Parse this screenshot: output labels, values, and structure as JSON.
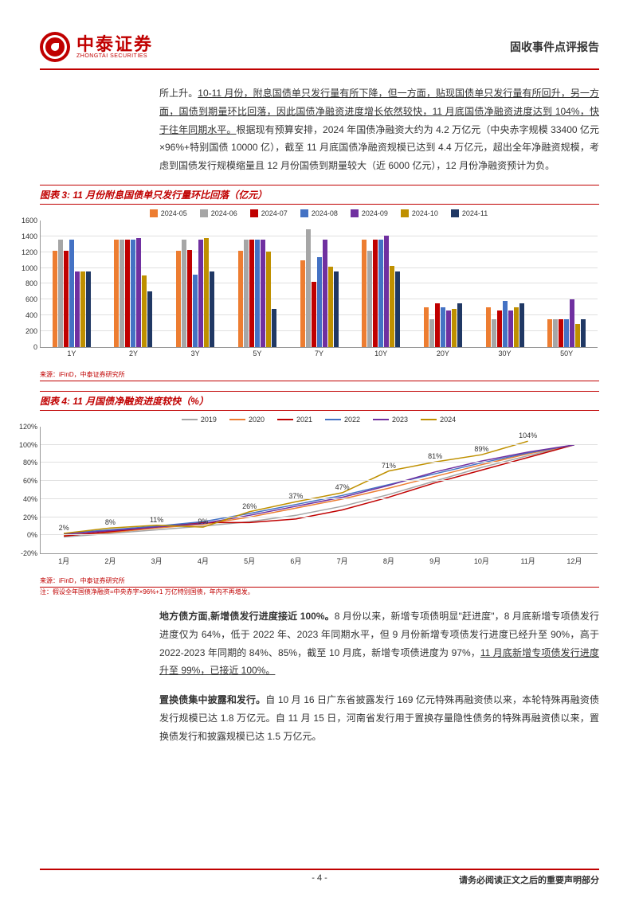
{
  "header": {
    "logo_cn": "中泰证券",
    "logo_en": "ZHONGTAI SECURITIES",
    "report_type": "固收事件点评报告"
  },
  "intro_text": {
    "prefix": "所上升。",
    "underlined1": "10-11 月份，附息国债单只发行量有所下降，但一方面，贴现国债单只发行量有所回升，另一方面，国债到期量环比回落，因此国债净融资进度增长依然较快，11 月底国债净融资进度达到 104%，快于往年同期水平。",
    "rest": "根据现有预算安排，2024 年国债净融资大约为 4.2 万亿元（中央赤字规模 33400 亿元×96%+特别国债 10000 亿），截至 11 月底国债净融资规模已达到 4.4 万亿元，超出全年净融资规模，考虑到国债发行规模缩量且 12 月份国债到期量较大（近 6000 亿元），12 月份净融资预计为负。"
  },
  "chart3": {
    "title": "图表 3:  11 月份附息国债单只发行量环比回落（亿元）",
    "type": "bar",
    "source": "来源：iFinD，中泰证券研究所",
    "categories": [
      "1Y",
      "2Y",
      "3Y",
      "5Y",
      "7Y",
      "10Y",
      "20Y",
      "30Y",
      "50Y"
    ],
    "series_labels": [
      "2024-05",
      "2024-06",
      "2024-07",
      "2024-08",
      "2024-09",
      "2024-10",
      "2024-11"
    ],
    "series_colors": [
      "#ed7d31",
      "#a6a6a6",
      "#c00000",
      "#4472c4",
      "#7030a0",
      "#bf9000",
      "#203864"
    ],
    "ymax": 1600,
    "ystep": 200,
    "values": [
      [
        1210,
        1350,
        1210,
        1350,
        950,
        950,
        950
      ],
      [
        1350,
        1350,
        1350,
        1350,
        1370,
        900,
        700
      ],
      [
        1210,
        1350,
        1220,
        910,
        1350,
        1370,
        950
      ],
      [
        1210,
        1350,
        1350,
        1350,
        1350,
        1200,
        480
      ],
      [
        1090,
        1480,
        820,
        1130,
        1350,
        1010,
        950
      ],
      [
        1350,
        1210,
        1350,
        1350,
        1400,
        1020,
        950
      ],
      [
        500,
        350,
        550,
        500,
        460,
        480,
        550
      ],
      [
        500,
        350,
        460,
        580,
        460,
        500,
        550
      ],
      [
        350,
        350,
        350,
        350,
        600,
        290,
        350
      ]
    ]
  },
  "chart4": {
    "title": "图表 4:  11 月国债净融资进度较快（%）",
    "type": "line",
    "source": "来源：iFinD，中泰证券研究所",
    "note": "注：假设全年国债净融资=中央赤字×96%+1 万亿特别国债，年内不再增发。",
    "categories": [
      "1月",
      "2月",
      "3月",
      "4月",
      "5月",
      "6月",
      "7月",
      "8月",
      "9月",
      "10月",
      "11月",
      "12月"
    ],
    "series_labels": [
      "2019",
      "2020",
      "2021",
      "2022",
      "2023",
      "2024"
    ],
    "series_colors": [
      "#a6a6a6",
      "#ed7d31",
      "#c00000",
      "#4472c4",
      "#7030a0",
      "#bf9000"
    ],
    "ymin": -20,
    "ymax": 120,
    "ystep": 20,
    "annotated_values": [
      "2%",
      "8%",
      "11%",
      "9%",
      "26%",
      "37%",
      "47%",
      "71%",
      "81%",
      "89%",
      "104%"
    ],
    "series_values": {
      "2019": [
        -2,
        2,
        6,
        10,
        15,
        22,
        32,
        45,
        60,
        75,
        88,
        100
      ],
      "2020": [
        0,
        3,
        8,
        12,
        20,
        30,
        40,
        52,
        65,
        78,
        90,
        100
      ],
      "2021": [
        -1,
        4,
        9,
        14,
        14,
        18,
        28,
        42,
        58,
        72,
        86,
        100
      ],
      "2022": [
        2,
        6,
        10,
        15,
        24,
        34,
        44,
        56,
        68,
        80,
        91,
        100
      ],
      "2023": [
        1,
        5,
        9,
        13,
        22,
        32,
        42,
        55,
        70,
        82,
        92,
        100
      ],
      "2024": [
        2,
        8,
        11,
        9,
        26,
        37,
        47,
        71,
        81,
        89,
        104,
        null
      ]
    }
  },
  "para1": {
    "bold_lead": "地方债方面,新增债发行进度接近 100%。",
    "body_a": "8 月份以来，新增专项债明显\"赶进度\"，8 月底新增专项债发行进度仅为 64%，低于 2022 年、2023 年同期水平，但 9 月份新增专项债发行进度已经升至 90%，高于 2022-2023 年同期的 84%、85%，截至 10 月底，新增专项债进度为 97%，",
    "underlined": "11 月底新增专项债发行进度升至 99%，已接近 100%。"
  },
  "para2": {
    "bold_lead": "置换债集中披露和发行。",
    "body": "自 10 月 16 日广东省披露发行 169 亿元特殊再融资债以来，本轮特殊再融资债发行规模已达 1.8 万亿元。自 11 月 15 日，河南省发行用于置换存量隐性债务的特殊再融资债以来，置换债发行和披露规模已达 1.5 万亿元。"
  },
  "footer": {
    "page": "- 4 -",
    "disclaimer": "请务必阅读正文之后的重要声明部分"
  }
}
